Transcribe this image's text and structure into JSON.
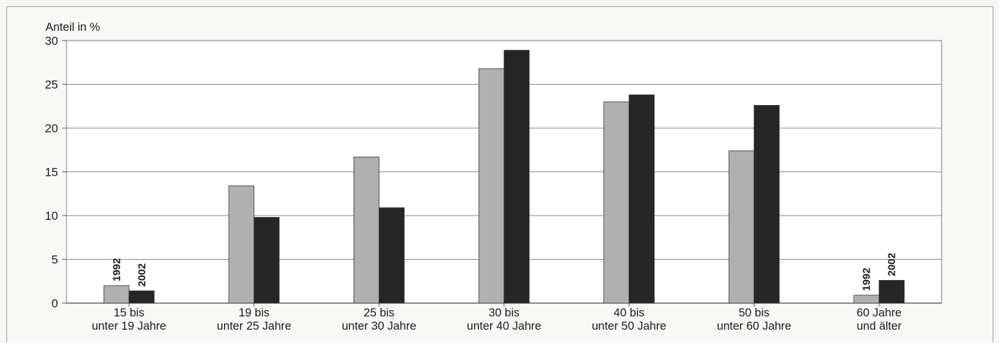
{
  "chart_data": {
    "type": "bar",
    "ylabel": "Anteil in %",
    "xlabel": "",
    "title": "",
    "ylim": [
      0,
      30
    ],
    "yticks": [
      0,
      5,
      10,
      15,
      20,
      25,
      30
    ],
    "grid": true,
    "categories": [
      [
        "15 bis",
        "unter 19 Jahre"
      ],
      [
        "19 bis",
        "unter 25 Jahre"
      ],
      [
        "25 bis",
        "unter 30 Jahre"
      ],
      [
        "30 bis",
        "unter 40 Jahre"
      ],
      [
        "40 bis",
        "unter 50 Jahre"
      ],
      [
        "50 bis",
        "unter 60 Jahre"
      ],
      [
        "60 Jahre",
        "und älter"
      ]
    ],
    "series": [
      {
        "name": "1992",
        "color": "#b0b0b0",
        "values": [
          2.0,
          13.4,
          16.7,
          26.8,
          23.0,
          17.4,
          0.9
        ]
      },
      {
        "name": "2002",
        "color": "#262626",
        "values": [
          1.4,
          9.8,
          10.9,
          28.9,
          23.8,
          22.6,
          2.6
        ]
      }
    ],
    "series_annotations": [
      {
        "category_index": 0
      },
      {
        "category_index": 6
      }
    ]
  }
}
